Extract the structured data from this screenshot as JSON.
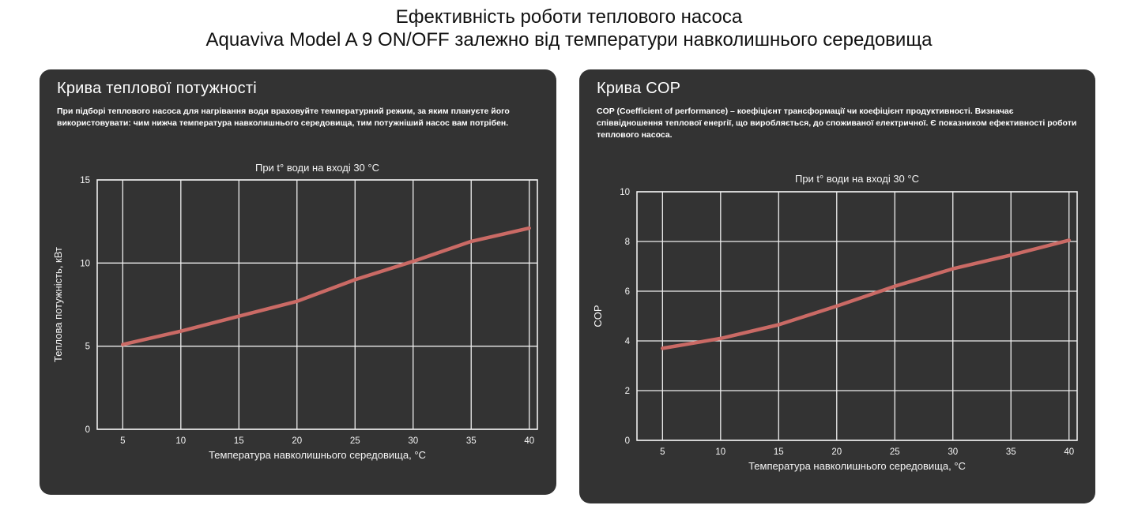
{
  "page": {
    "title_line1": "Ефективність роботи теплового насоса",
    "title_line2": "Aquaviva Model A 9 ON/OFF залежно від температури навколишнього середовища"
  },
  "colors": {
    "page_bg": "#ffffff",
    "page_text": "#111111",
    "panel_bg": "#333333",
    "panel_text": "#ffffff",
    "grid": "#eeeeee",
    "curve": "#ca6a65"
  },
  "panels": [
    {
      "title": "Крива теплової потужності",
      "description": "При підборі теплового насоса для нагрівання води враховуйте температурний режим, за яким плануєте його використовувати: чим нижча температура навколишнього середовища, тим потужніший насос вам потрібен."
    },
    {
      "title": "Крива COP",
      "description": "COP (Coefficient of performance) – коефіцієнт трансформації чи коефіцієнт продуктивності. Визначає співвідношення теплової енергії, що виробляється, до споживаної електричної. Є показником ефективності роботи теплового насоса."
    }
  ],
  "chart_data": [
    {
      "type": "line",
      "name": "heat-power-curve",
      "title": "При t° води на вході 30 °C",
      "xlabel": "Температура навколишнього середовища, °C",
      "ylabel": "Теплова потужність, кВт",
      "x": [
        5,
        10,
        15,
        20,
        25,
        30,
        35,
        40
      ],
      "values": [
        5.1,
        5.9,
        6.8,
        7.7,
        9.0,
        10.1,
        11.3,
        12.1
      ],
      "xticks": [
        5,
        10,
        15,
        20,
        25,
        30,
        35,
        40
      ],
      "yticks": [
        0,
        5,
        10,
        15
      ],
      "xlim": [
        2.8,
        40.7
      ],
      "ylim": [
        0,
        15
      ],
      "grid": true,
      "legend": false,
      "series_color": "#ca6a65"
    },
    {
      "type": "line",
      "name": "cop-curve",
      "title": "При t° води на вході 30 °C",
      "xlabel": "Температура навколишнього середовища, °C",
      "ylabel": "COP",
      "x": [
        5,
        10,
        15,
        20,
        25,
        30,
        35,
        40
      ],
      "values": [
        3.7,
        4.1,
        4.65,
        5.4,
        6.2,
        6.9,
        7.45,
        8.05
      ],
      "xticks": [
        5,
        10,
        15,
        20,
        25,
        30,
        35,
        40
      ],
      "yticks": [
        0,
        2,
        4,
        6,
        8,
        10
      ],
      "xlim": [
        2.8,
        40.7
      ],
      "ylim": [
        0,
        10
      ],
      "grid": true,
      "legend": false,
      "series_color": "#ca6a65"
    }
  ]
}
